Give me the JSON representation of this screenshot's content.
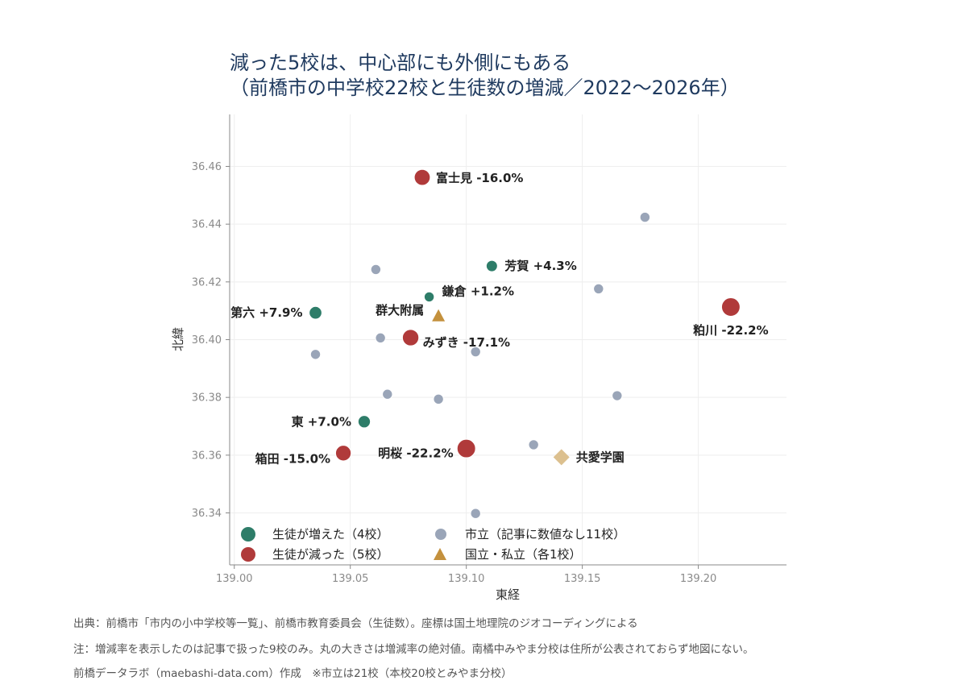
{
  "chart_data": {
    "type": "scatter",
    "title_lines": [
      "減った5校は、中心部にも外側にもある",
      "（前橋市の中学校22校と生徒数の増減／2022〜2026年）"
    ],
    "xlabel": "東経",
    "ylabel": "北緯",
    "xlim": [
      138.998,
      139.238
    ],
    "ylim": [
      36.322,
      36.478
    ],
    "xticks": [
      "139.00",
      "139.05",
      "139.10",
      "139.15",
      "139.20"
    ],
    "yticks": [
      "36.34",
      "36.36",
      "36.38",
      "36.40",
      "36.42",
      "36.44",
      "36.46"
    ],
    "grid": true,
    "legend_position": "bottom-left",
    "colors": {
      "increased": "#2e7d69",
      "decreased": "#b03a3a",
      "city_no_value": "#9aa5b8",
      "national": "#c4913d",
      "private": "#dcc08f"
    },
    "series": [
      {
        "name": "生徒が増えた（4校）",
        "key": "increased",
        "points": [
          {
            "label": "芳賀 +4.3%",
            "change": 4.3,
            "x": 139.111,
            "y": 36.4255
          },
          {
            "label": "鎌倉 +1.2%",
            "change": 1.2,
            "x": 139.084,
            "y": 36.4148
          },
          {
            "label": "第六 +7.9%",
            "change": 7.9,
            "x": 139.035,
            "y": 36.4093
          },
          {
            "label": "東 +7.0%",
            "change": 7.0,
            "x": 139.056,
            "y": 36.3716
          }
        ]
      },
      {
        "name": "生徒が減った（5校）",
        "key": "decreased",
        "points": [
          {
            "label": "富士見 -16.0%",
            "change": -16.0,
            "x": 139.081,
            "y": 36.4562
          },
          {
            "label": "粕川 -22.2%",
            "change": -22.2,
            "x": 139.214,
            "y": 36.4113
          },
          {
            "label": "みずき -17.1%",
            "change": -17.1,
            "x": 139.076,
            "y": 36.4007
          },
          {
            "label": "明桜 -22.2%",
            "change": -22.2,
            "x": 139.1,
            "y": 36.3623
          },
          {
            "label": "箱田 -15.0%",
            "change": -15.0,
            "x": 139.047,
            "y": 36.3607
          }
        ]
      },
      {
        "name": "市立（記事に数値なし11校）",
        "key": "city_no_value",
        "points": [
          {
            "x": 139.177,
            "y": 36.4424
          },
          {
            "x": 139.061,
            "y": 36.4243
          },
          {
            "x": 139.157,
            "y": 36.4176
          },
          {
            "x": 139.063,
            "y": 36.4006
          },
          {
            "x": 139.035,
            "y": 36.3949
          },
          {
            "x": 139.104,
            "y": 36.3958
          },
          {
            "x": 139.066,
            "y": 36.3811
          },
          {
            "x": 139.088,
            "y": 36.3794
          },
          {
            "x": 139.165,
            "y": 36.3806
          },
          {
            "x": 139.129,
            "y": 36.3636
          },
          {
            "x": 139.104,
            "y": 36.3398
          }
        ]
      },
      {
        "name": "国立・私立（各1校）",
        "key": "national_private",
        "points": [
          {
            "label": "群大附属",
            "kind": "national",
            "x": 139.088,
            "y": 36.4083
          },
          {
            "label": "共愛学園",
            "kind": "private",
            "x": 139.141,
            "y": 36.3593
          }
        ]
      }
    ]
  },
  "footnotes": [
    "出典：前橋市「市内の小中学校等一覧」、前橋市教育委員会（生徒数）。座標は国土地理院のジオコーディングによる",
    "注：増減率を表示したのは記事で扱った9校のみ。丸の大きさは増減率の絶対値。南橘中みやま分校は住所が公表されておらず地図にない。",
    "前橋データラボ（maebashi-data.com）作成　※市立は21校（本校20校とみやま分校）"
  ]
}
